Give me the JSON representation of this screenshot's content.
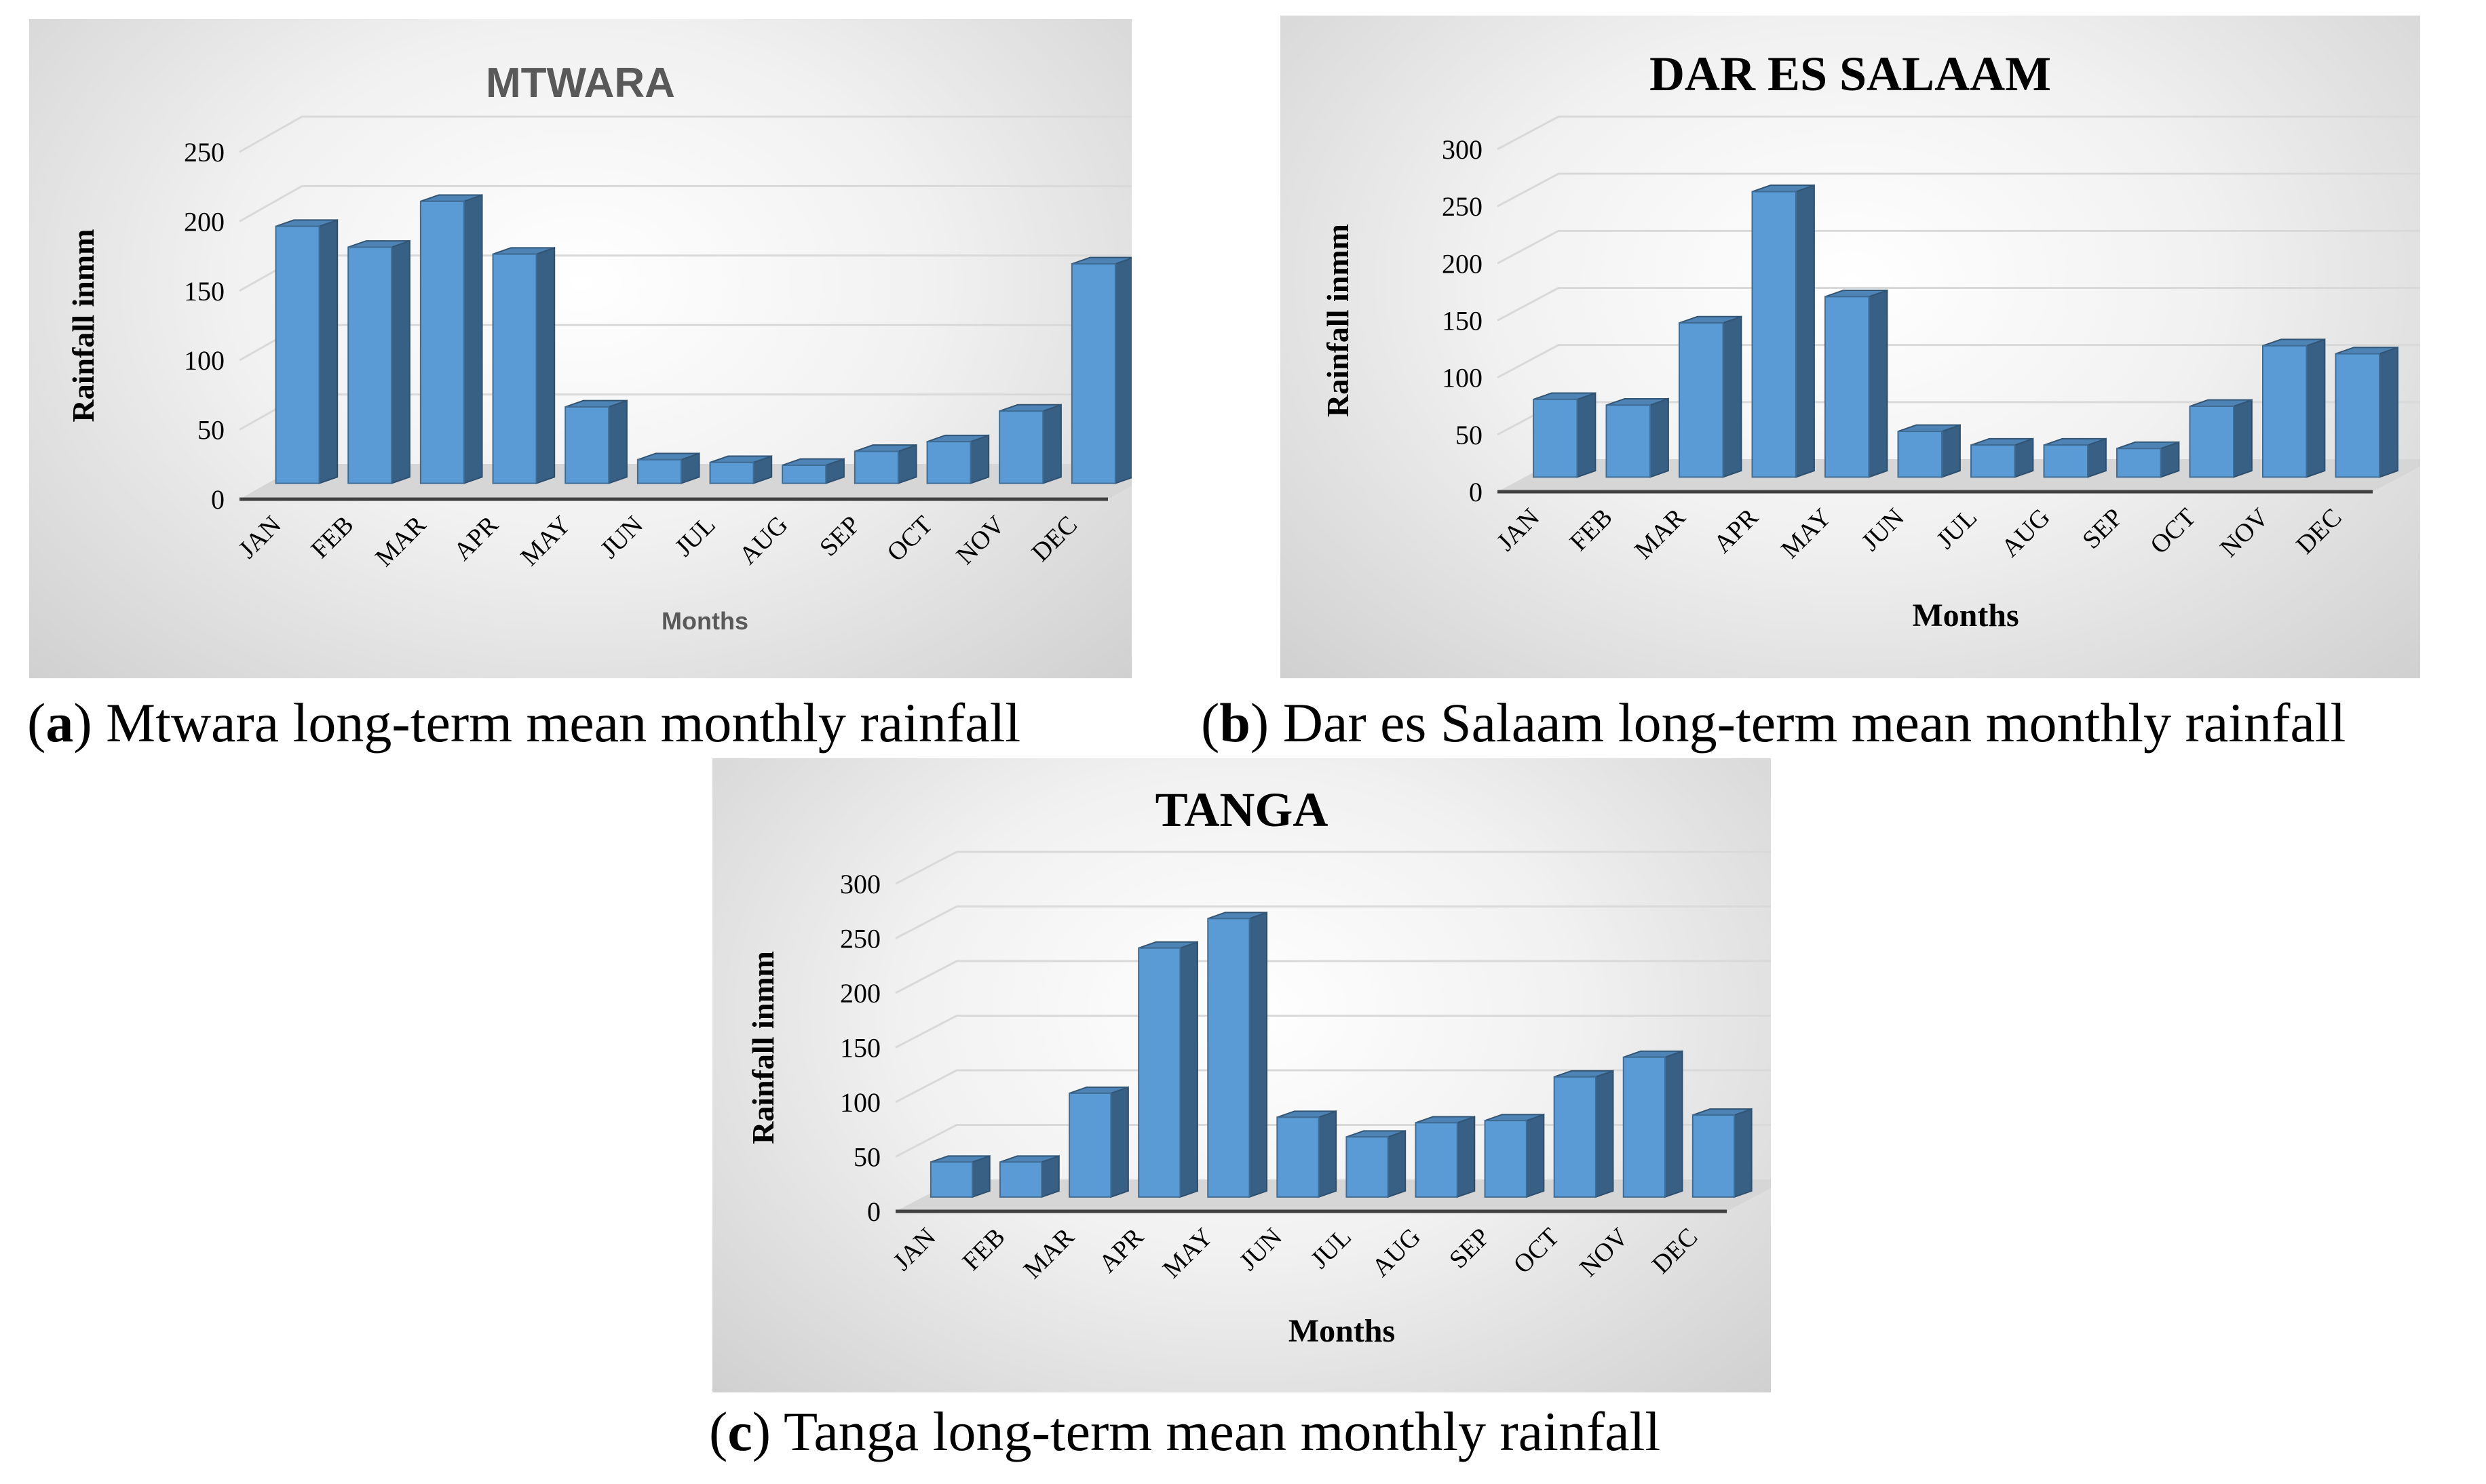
{
  "chart_data": [
    {
      "type": "bar",
      "title": "MTWARA",
      "xlabel": "Months",
      "ylabel": "Rainfall inmm",
      "categories": [
        "JAN",
        "FEB",
        "MAR",
        "APR",
        "MAY",
        "JUN",
        "JUL",
        "AUG",
        "SEP",
        "OCT",
        "NOV",
        "DEC"
      ],
      "values": [
        185,
        170,
        203,
        165,
        55,
        17,
        15,
        13,
        23,
        30,
        52,
        158
      ],
      "ylim": [
        0,
        250
      ],
      "yticks": [
        "0",
        "50",
        "100",
        "150",
        "200",
        "250"
      ],
      "grid": true,
      "bar_color": "#5b9bd5",
      "style": "3d-column"
    },
    {
      "type": "bar",
      "title": "DAR ES SALAAM",
      "xlabel": "Months",
      "ylabel": "Rainfall inmm",
      "categories": [
        "JAN",
        "FEB",
        "MAR",
        "APR",
        "MAY",
        "JUN",
        "JUL",
        "AUG",
        "SEP",
        "OCT",
        "NOV",
        "DEC"
      ],
      "values": [
        68,
        63,
        135,
        250,
        158,
        40,
        28,
        28,
        25,
        62,
        115,
        108
      ],
      "ylim": [
        0,
        300
      ],
      "yticks": [
        "0",
        "50",
        "100",
        "150",
        "200",
        "250",
        "300"
      ],
      "grid": true,
      "bar_color": "#5b9bd5",
      "style": "3d-column"
    },
    {
      "type": "bar",
      "title": "TANGA",
      "xlabel": "Months",
      "ylabel": "Rainfall inmm",
      "categories": [
        "JAN",
        "FEB",
        "MAR",
        "APR",
        "MAY",
        "JUN",
        "JUL",
        "AUG",
        "SEP",
        "OCT",
        "NOV",
        "DEC"
      ],
      "values": [
        32,
        32,
        95,
        228,
        255,
        73,
        55,
        68,
        70,
        110,
        128,
        75
      ],
      "ylim": [
        0,
        300
      ],
      "yticks": [
        "0",
        "50",
        "100",
        "150",
        "200",
        "250",
        "300"
      ],
      "grid": true,
      "bar_color": "#5b9bd5",
      "style": "3d-column"
    }
  ],
  "captions": {
    "a": {
      "letter": "a",
      "text": " Mtwara long-term mean monthly rainfall"
    },
    "b": {
      "letter": "b",
      "text": " Dar es Salaam long-term mean monthly rainfall"
    },
    "c": {
      "letter": "c",
      "text": " Tanga long-term mean monthly rainfall"
    }
  }
}
